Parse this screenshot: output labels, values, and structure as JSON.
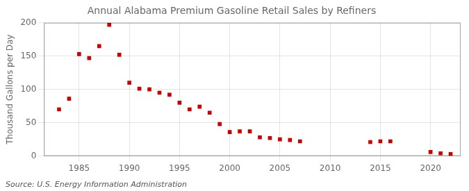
{
  "chart_data": {
    "type": "scatter",
    "title": "Annual Alabama Premium Gasoline Retail Sales by Refiners",
    "ylabel": "Thousand Gallons per Day",
    "annotations": [
      "Source: U.S. Energy Information Administration"
    ],
    "x": [
      1983,
      1984,
      1985,
      1986,
      1987,
      1988,
      1989,
      1990,
      1991,
      1992,
      1993,
      1994,
      1995,
      1996,
      1997,
      1998,
      1999,
      2000,
      2001,
      2002,
      2003,
      2004,
      2005,
      2006,
      2007,
      2014,
      2015,
      2016,
      2020,
      2021,
      2022
    ],
    "values": [
      70,
      86,
      153,
      147,
      165,
      197,
      152,
      110,
      101,
      100,
      95,
      92,
      80,
      70,
      74,
      65,
      48,
      36,
      37,
      37,
      28,
      27,
      25,
      24,
      22,
      21,
      22,
      22,
      6,
      4,
      3
    ],
    "color": "#cc0000",
    "marker": "square",
    "xlim": [
      1981.5,
      2023
    ],
    "ylim": [
      0,
      200
    ],
    "xticks": [
      1985,
      1990,
      1995,
      2000,
      2005,
      2010,
      2015,
      2020
    ],
    "yticks": [
      0,
      50,
      100,
      150,
      200
    ],
    "grid": true
  }
}
